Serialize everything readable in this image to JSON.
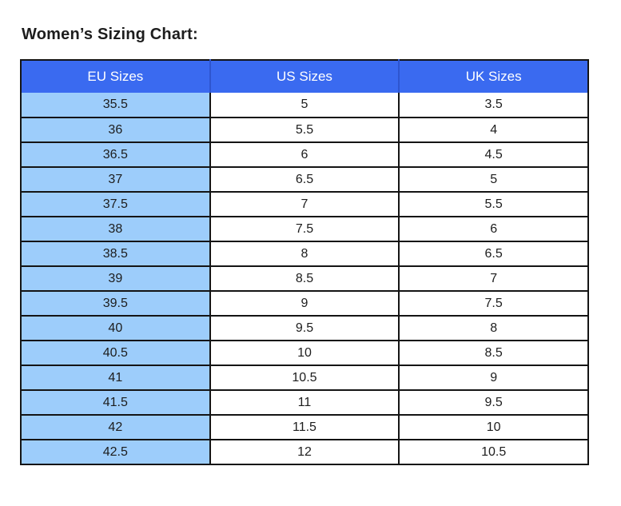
{
  "title": "Women’s Sizing Chart:",
  "chart_data": {
    "type": "table",
    "title": "Women’s Sizing Chart:",
    "columns": [
      "EU Sizes",
      "US Sizes",
      "UK Sizes"
    ],
    "rows": [
      [
        "35.5",
        "5",
        "3.5"
      ],
      [
        "36",
        "5.5",
        "4"
      ],
      [
        "36.5",
        "6",
        "4.5"
      ],
      [
        "37",
        "6.5",
        "5"
      ],
      [
        "37.5",
        "7",
        "5.5"
      ],
      [
        "38",
        "7.5",
        "6"
      ],
      [
        "38.5",
        "8",
        "6.5"
      ],
      [
        "39",
        "8.5",
        "7"
      ],
      [
        "39.5",
        "9",
        "7.5"
      ],
      [
        "40",
        "9.5",
        "8"
      ],
      [
        "40.5",
        "10",
        "8.5"
      ],
      [
        "41",
        "10.5",
        "9"
      ],
      [
        "41.5",
        "11",
        "9.5"
      ],
      [
        "42",
        "11.5",
        "10"
      ],
      [
        "42.5",
        "12",
        "10.5"
      ]
    ]
  },
  "colors": {
    "header_bg": "#3a6af0",
    "header_divider": "#2e55cf",
    "first_col_bg": "#9dcdfb",
    "border": "#141414",
    "text": "#1d1d1d",
    "header_text": "#ffffff",
    "page_bg": "#ffffff"
  }
}
